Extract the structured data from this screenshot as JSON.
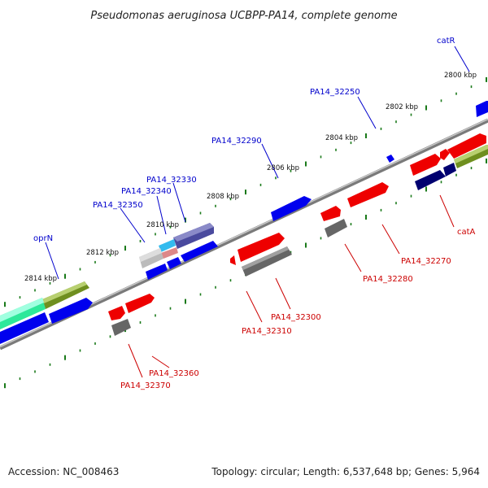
{
  "title": "Pseudomonas aeruginosa UCBPP-PA14, complete genome",
  "accession_text": "Accession: NC_008463",
  "summary_text": "Topology: circular; Length: 6,537,648 bp; Genes: 5,964",
  "colors": {
    "forward_label": "#0000cc",
    "reverse_label": "#cc0000",
    "backbone": "#888888",
    "tick": "#1a7a1a",
    "forward_gene": "#0000ee",
    "reverse_gene": "#ee0000",
    "pseudo_gene": "#666666",
    "dark_gene": "#000070",
    "olive_gene": "#6f8f1f",
    "teal_gene": "#2de89a",
    "purple_gene": "#4a4a9e",
    "cyan_gene": "#33bbee",
    "pink_gene": "#dd8888",
    "lightgray_gene": "#bbbbbb"
  },
  "forward_ruler_labels": [
    "2800 kbp",
    "2802 kbp",
    "2804 kbp",
    "2806 kbp",
    "2808 kbp",
    "2810 kbp",
    "2812 kbp",
    "2814 kbp"
  ],
  "forward_gene_labels": [
    "catR",
    "PA14_32250",
    "PA14_32290",
    "PA14_32330",
    "PA14_32340",
    "PA14_32350",
    "oprN"
  ],
  "reverse_gene_labels": [
    "catA",
    "PA14_32270",
    "PA14_32280",
    "PA14_32300",
    "PA14_32310",
    "PA14_32360",
    "PA14_32370"
  ]
}
